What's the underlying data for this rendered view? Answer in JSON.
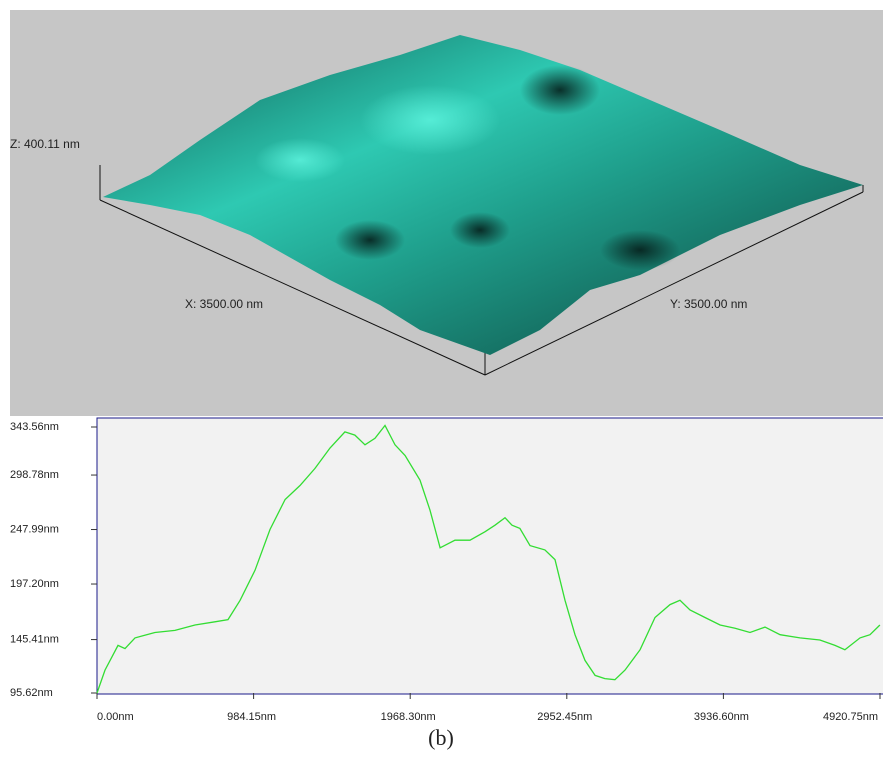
{
  "surface": {
    "z_label": "Z: 400.11 nm",
    "x_label": "X: 3500.00 nm",
    "y_label": "Y: 3500.00 nm"
  },
  "chart_data": {
    "type": "line",
    "x": [
      0,
      50,
      132,
      176,
      239,
      364,
      490,
      616,
      741,
      823,
      899,
      993,
      1087,
      1182,
      1276,
      1370,
      1464,
      1558,
      1621,
      1684,
      1747,
      1810,
      1873,
      1936,
      2030,
      2093,
      2156,
      2250,
      2344,
      2439,
      2501,
      2564,
      2608,
      2658,
      2721,
      2815,
      2878,
      2941,
      3004,
      3067,
      3130,
      3192,
      3255,
      3318,
      3413,
      3507,
      3601,
      3664,
      3727,
      3821,
      3916,
      4010,
      4104,
      4198,
      4293,
      4418,
      4543,
      4638,
      4700,
      4795,
      4858,
      4920
    ],
    "series": [
      {
        "color": "#33dd33",
        "values": [
          95.6,
          117,
          140,
          137,
          147,
          152,
          154,
          159,
          162,
          164,
          182,
          210,
          248,
          276,
          289,
          305,
          324,
          339,
          336,
          327,
          333,
          345,
          327,
          317,
          294,
          266,
          231,
          238,
          238,
          246,
          252,
          259,
          252,
          249,
          233,
          229,
          220,
          182,
          150,
          126,
          112,
          109,
          108,
          117,
          136,
          166,
          178,
          182,
          173,
          166,
          159,
          156,
          152,
          157,
          150,
          147,
          145,
          140,
          136,
          147,
          150,
          159
        ]
      }
    ],
    "xlim": [
      0,
      4920.75
    ],
    "xticks": [
      {
        "value": 0,
        "label": "0.00nm"
      },
      {
        "value": 984.15,
        "label": "984.15nm"
      },
      {
        "value": 1968.3,
        "label": "1968.30nm"
      },
      {
        "value": 2952.45,
        "label": "2952.45nm"
      },
      {
        "value": 3936.6,
        "label": "3936.60nm"
      },
      {
        "value": 4920.75,
        "label": "4920.75nm"
      }
    ],
    "ylim": [
      95.62,
      343.56
    ],
    "yticks": [
      {
        "value": 95.62,
        "label": "95.62nm"
      },
      {
        "value": 145.41,
        "label": "145.41nm"
      },
      {
        "value": 197.2,
        "label": "197.20nm"
      },
      {
        "value": 247.99,
        "label": "247.99nm"
      },
      {
        "value": 298.78,
        "label": "298.78nm"
      },
      {
        "value": 343.56,
        "label": "343.56nm"
      }
    ]
  },
  "caption": "(b)"
}
